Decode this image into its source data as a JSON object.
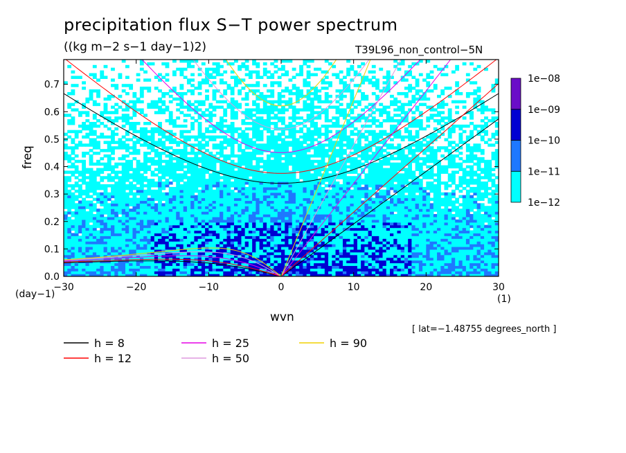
{
  "title": "precipitation flux S−T power spectrum",
  "units": "((kg m−2 s−1 day−1)2)",
  "run_name": "T39L96_non_control−5N",
  "lat_note": "[ lat=−1.48755 degrees_north ]",
  "chart_data": {
    "type": "heatmap",
    "xlabel": "wvn",
    "ylabel": "freq",
    "xunit": "(1)",
    "yunit": "(day−1)",
    "xlim": [
      -30,
      30
    ],
    "ylim": [
      0,
      0.79
    ],
    "xticks": [
      -30,
      -20,
      -10,
      0,
      10,
      20,
      30
    ],
    "xtick_labels": [
      "−30",
      "−20",
      "−10",
      "0",
      "10",
      "20",
      "30"
    ],
    "yticks": [
      0.0,
      0.1,
      0.2,
      0.3,
      0.4,
      0.5,
      0.6,
      0.7
    ],
    "ytick_labels": [
      "0.0",
      "0.1",
      "0.2",
      "0.3",
      "0.4",
      "0.5",
      "0.6",
      "0.7"
    ],
    "colorbar": {
      "levels": [
        "1e−12",
        "1e−11",
        "1e−10",
        "1e−09",
        "1e−08"
      ],
      "colors": [
        "#00ffff",
        "#1e78ff",
        "#0000d2",
        "#6a0dc8"
      ]
    },
    "dispersion_curves": [
      {
        "label": "h =  8",
        "h": 8,
        "color": "#000000"
      },
      {
        "label": "h = 12",
        "h": 12,
        "color": "#ff0000"
      },
      {
        "label": "h = 25",
        "h": 25,
        "color": "#e600e6"
      },
      {
        "label": "h = 50",
        "h": 50,
        "color": "#dd99dd"
      },
      {
        "label": "h = 90",
        "h": 90,
        "color": "#f0d000"
      }
    ]
  }
}
